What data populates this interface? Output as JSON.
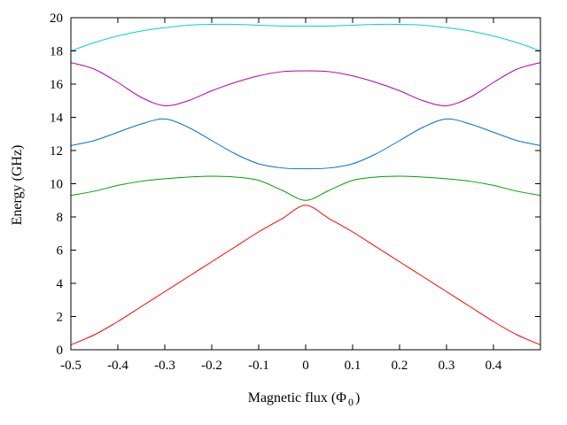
{
  "chart_data": {
    "type": "line",
    "title": "",
    "xlabel": "Magnetic flux (Φ",
    "xlabel_sub": "0",
    "xlabel_close": ")",
    "ylabel": "Energy (GHz)",
    "xlim": [
      -0.5,
      0.5
    ],
    "ylim": [
      0,
      20
    ],
    "xticks": [
      -0.5,
      -0.4,
      -0.3,
      -0.2,
      -0.1,
      0,
      0.1,
      0.2,
      0.3,
      0.4
    ],
    "xtick_labels": [
      "-0.5",
      "-0.4",
      "-0.3",
      "-0.2",
      "-0.1",
      "0",
      "0.1",
      "0.2",
      "0.3",
      "0.4"
    ],
    "yticks": [
      0,
      2,
      4,
      6,
      8,
      10,
      12,
      14,
      16,
      18,
      20
    ],
    "ytick_labels": [
      "0",
      "2",
      "4",
      "6",
      "8",
      "10",
      "12",
      "14",
      "16",
      "18",
      "20"
    ],
    "grid": false,
    "legend": "none",
    "x": [
      -0.5,
      -0.45,
      -0.4,
      -0.35,
      -0.3,
      -0.25,
      -0.2,
      -0.15,
      -0.1,
      -0.05,
      0,
      0.05,
      0.1,
      0.15,
      0.2,
      0.25,
      0.3,
      0.35,
      0.4,
      0.45,
      0.5
    ],
    "series": [
      {
        "color": "#ff0000",
        "values": [
          0.3,
          0.9,
          1.7,
          2.6,
          3.5,
          4.4,
          5.3,
          6.2,
          7.1,
          7.9,
          8.7,
          7.9,
          7.1,
          6.2,
          5.3,
          4.4,
          3.5,
          2.6,
          1.7,
          0.9,
          0.3
        ]
      },
      {
        "color": "#00a000",
        "values": [
          9.3,
          9.55,
          9.9,
          10.15,
          10.3,
          10.4,
          10.45,
          10.4,
          10.2,
          9.6,
          9.0,
          9.6,
          10.2,
          10.4,
          10.45,
          10.4,
          10.3,
          10.15,
          9.9,
          9.55,
          9.3
        ]
      },
      {
        "color": "#0070d0",
        "values": [
          12.3,
          12.6,
          13.1,
          13.6,
          13.9,
          13.4,
          12.6,
          11.8,
          11.2,
          10.95,
          10.9,
          10.95,
          11.2,
          11.8,
          12.6,
          13.4,
          13.9,
          13.6,
          13.1,
          12.6,
          12.3
        ]
      },
      {
        "color": "#b000b0",
        "values": [
          17.3,
          16.9,
          16.1,
          15.2,
          14.7,
          15.0,
          15.6,
          16.1,
          16.5,
          16.75,
          16.8,
          16.75,
          16.5,
          16.1,
          15.6,
          15.0,
          14.7,
          15.2,
          16.1,
          16.9,
          17.3
        ]
      },
      {
        "color": "#00d0d8",
        "values": [
          18.0,
          18.5,
          18.9,
          19.2,
          19.4,
          19.55,
          19.6,
          19.6,
          19.55,
          19.5,
          19.5,
          19.5,
          19.55,
          19.6,
          19.6,
          19.55,
          19.4,
          19.2,
          18.9,
          18.5,
          18.0
        ]
      }
    ]
  }
}
